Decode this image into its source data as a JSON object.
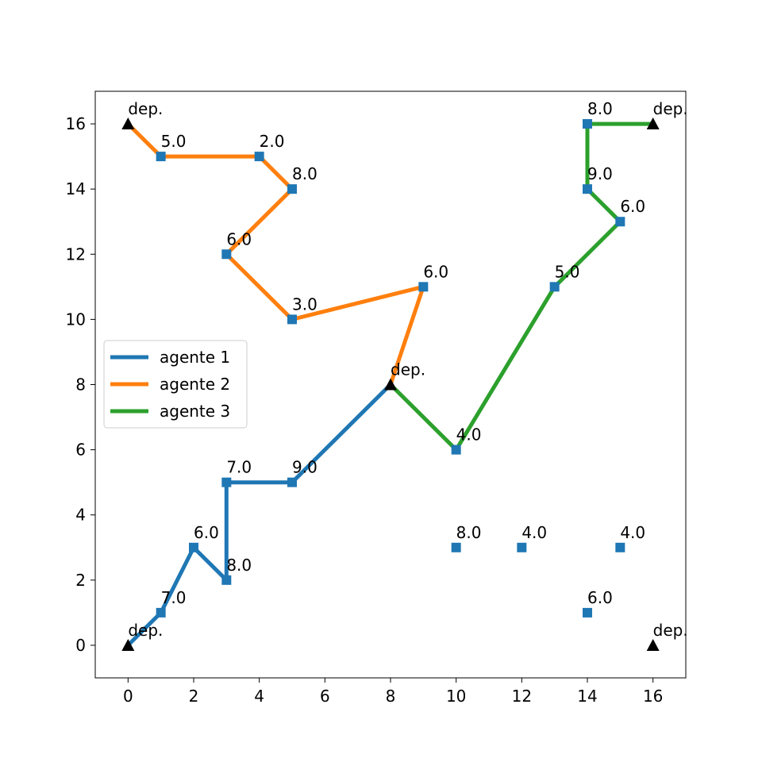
{
  "chart_data": {
    "type": "line",
    "title": "",
    "xlabel": "",
    "ylabel": "",
    "xlim": [
      -1,
      17
    ],
    "ylim": [
      -1,
      17
    ],
    "xticks": [
      "0",
      "2",
      "4",
      "6",
      "8",
      "10",
      "12",
      "14",
      "16"
    ],
    "yticks": [
      "0",
      "2",
      "4",
      "6",
      "8",
      "10",
      "12",
      "14",
      "16"
    ],
    "grid": false,
    "legend_position": "center-left",
    "series": [
      {
        "name": "agente 1",
        "color": "#1f77b4",
        "x": [
          0,
          1,
          2,
          3,
          3,
          5,
          8
        ],
        "y": [
          0,
          1,
          3,
          2,
          5,
          5,
          8
        ]
      },
      {
        "name": "agente 2",
        "color": "#ff7f0e",
        "x": [
          0,
          1,
          4,
          5,
          3,
          5,
          9,
          8
        ],
        "y": [
          16,
          15,
          15,
          14,
          12,
          10,
          11,
          8
        ]
      },
      {
        "name": "agente 3",
        "color": "#2ca02c",
        "x": [
          8,
          10,
          13,
          15,
          14,
          14,
          16
        ],
        "y": [
          8,
          6,
          11,
          13,
          14,
          16,
          16
        ]
      }
    ],
    "customers": [
      {
        "x": 1,
        "y": 1,
        "label": "7.0"
      },
      {
        "x": 2,
        "y": 3,
        "label": "6.0"
      },
      {
        "x": 3,
        "y": 2,
        "label": "8.0"
      },
      {
        "x": 3,
        "y": 5,
        "label": "7.0"
      },
      {
        "x": 5,
        "y": 5,
        "label": "9.0"
      },
      {
        "x": 1,
        "y": 15,
        "label": "5.0"
      },
      {
        "x": 4,
        "y": 15,
        "label": "2.0"
      },
      {
        "x": 5,
        "y": 14,
        "label": "8.0"
      },
      {
        "x": 3,
        "y": 12,
        "label": "6.0"
      },
      {
        "x": 5,
        "y": 10,
        "label": "3.0"
      },
      {
        "x": 9,
        "y": 11,
        "label": "6.0"
      },
      {
        "x": 10,
        "y": 6,
        "label": "4.0"
      },
      {
        "x": 13,
        "y": 11,
        "label": "5.0"
      },
      {
        "x": 15,
        "y": 13,
        "label": "6.0"
      },
      {
        "x": 14,
        "y": 14,
        "label": "9.0"
      },
      {
        "x": 14,
        "y": 16,
        "label": "8.0"
      },
      {
        "x": 10,
        "y": 3,
        "label": "8.0"
      },
      {
        "x": 12,
        "y": 3,
        "label": "4.0"
      },
      {
        "x": 15,
        "y": 3,
        "label": "4.0"
      },
      {
        "x": 14,
        "y": 1,
        "label": "6.0"
      }
    ],
    "customer_color": "#1f77b4",
    "depots": [
      {
        "x": 0,
        "y": 0,
        "label": "dep."
      },
      {
        "x": 0,
        "y": 16,
        "label": "dep."
      },
      {
        "x": 8,
        "y": 8,
        "label": "dep."
      },
      {
        "x": 16,
        "y": 16,
        "label": "dep."
      },
      {
        "x": 16,
        "y": 0,
        "label": "dep."
      }
    ],
    "depot_color": "#000000"
  }
}
